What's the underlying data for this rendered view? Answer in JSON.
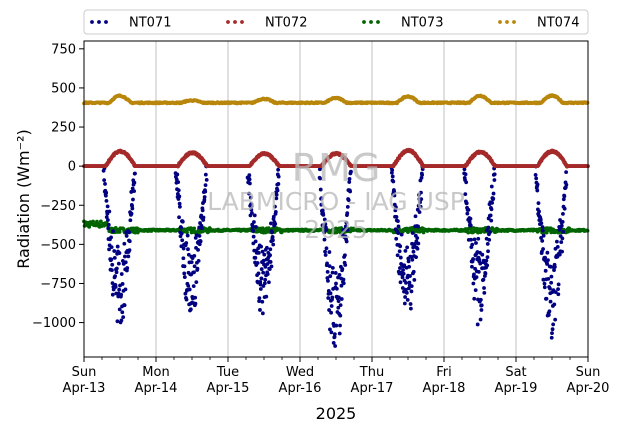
{
  "chart_data": {
    "type": "scatter",
    "ylabel": "Radiation (Wm⁻²)",
    "xlabel": "2025",
    "ylim": [
      -1220,
      800
    ],
    "yticks": [
      750,
      500,
      250,
      0,
      -250,
      -500,
      -750,
      -1000
    ],
    "ytick_labels": [
      "750",
      "500",
      "250",
      "0",
      "−250",
      "−500",
      "−750",
      "−1000"
    ],
    "xlim_days": [
      0,
      7
    ],
    "xticks": [
      {
        "day": "Sun",
        "date": "Apr-13"
      },
      {
        "day": "Mon",
        "date": "Apr-14"
      },
      {
        "day": "Tue",
        "date": "Apr-15"
      },
      {
        "day": "Wed",
        "date": "Apr-16"
      },
      {
        "day": "Thu",
        "date": "Apr-17"
      },
      {
        "day": "Fri",
        "date": "Apr-18"
      },
      {
        "day": "Sat",
        "date": "Apr-19"
      },
      {
        "day": "Sun",
        "date": "Apr-20"
      }
    ],
    "grid": "vertical",
    "legend_position": "top",
    "series": [
      {
        "name": "NT071",
        "color": "#000080",
        "baseline": 0,
        "daily_min": [
          -1010,
          -960,
          -950,
          -1150,
          -970,
          -960,
          -1080
        ]
      },
      {
        "name": "NT072",
        "color": "#a52a2a",
        "baseline": 0,
        "daily_peak": [
          95,
          85,
          80,
          80,
          100,
          90,
          95
        ]
      },
      {
        "name": "NT073",
        "color": "#006400",
        "baseline": -410,
        "daily_range": [
          -450,
          -340
        ]
      },
      {
        "name": "NT074",
        "color": "#b8860b",
        "baseline": 405,
        "daily_peak": [
          450,
          420,
          430,
          435,
          445,
          450,
          450
        ]
      }
    ],
    "watermark": [
      "RMG",
      "LABMICRO - IAG USP",
      "2025"
    ]
  }
}
